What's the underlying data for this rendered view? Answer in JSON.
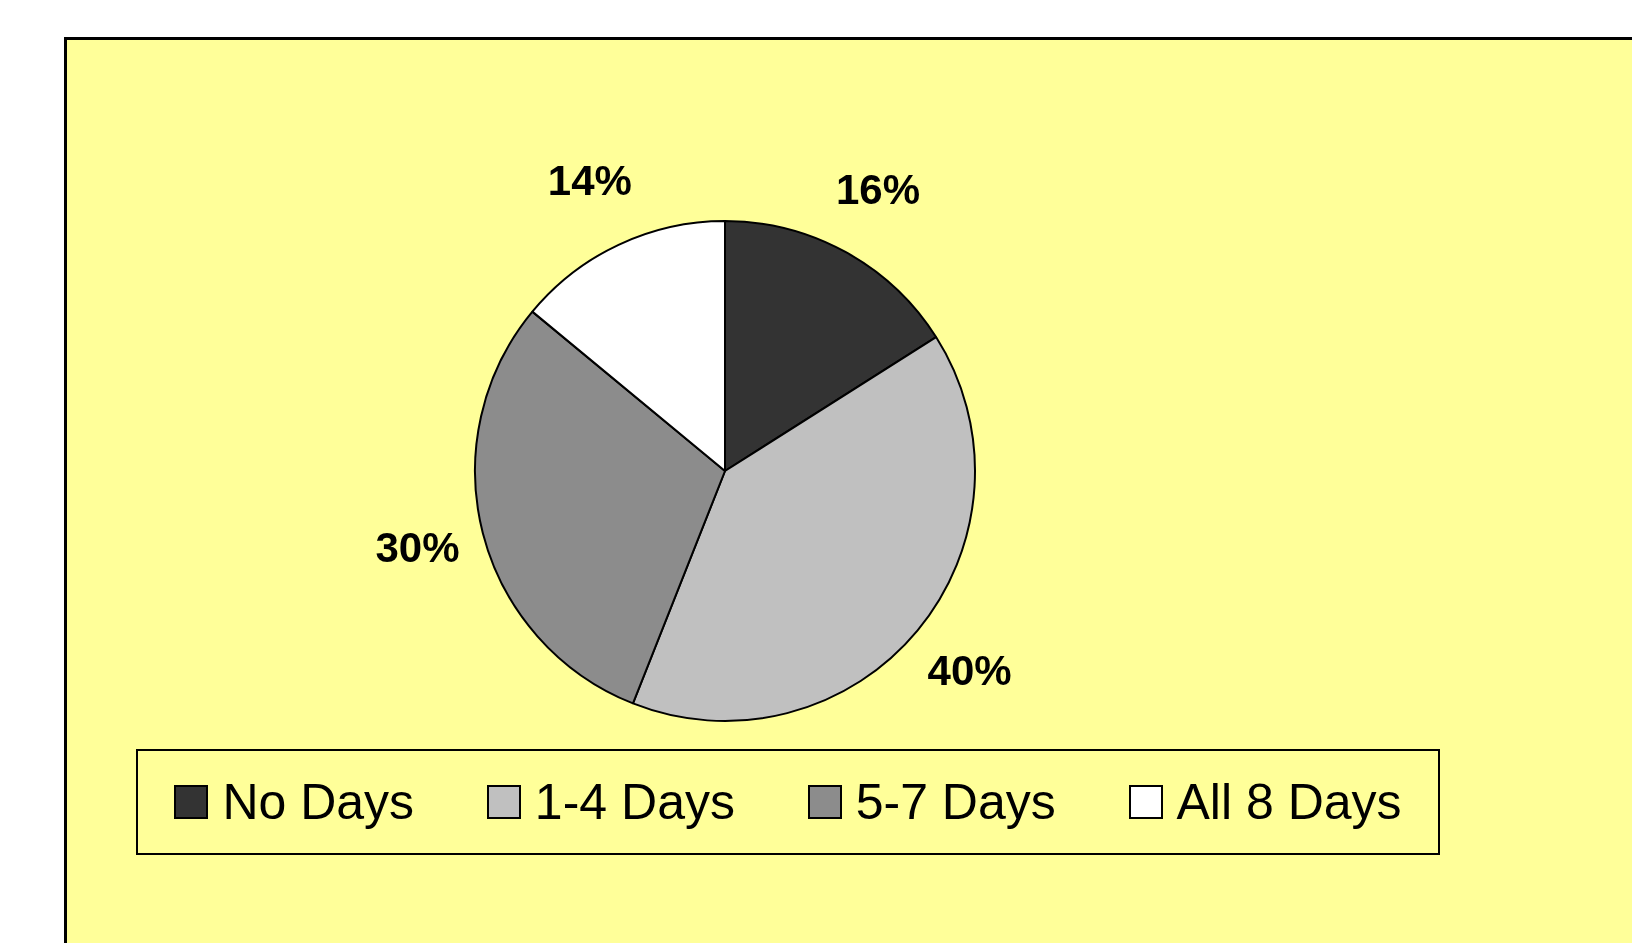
{
  "chart_data": {
    "type": "pie",
    "categories": [
      "No Days",
      "1-4 Days",
      "5-7 Days",
      "All 8 Days"
    ],
    "values": [
      16,
      40,
      30,
      14
    ],
    "colors": [
      "#333333",
      "#c0c0c0",
      "#8c8c8c",
      "#ffffff"
    ],
    "value_labels": [
      "16%",
      "40%",
      "30%",
      "14%"
    ],
    "legend": "bottom"
  }
}
